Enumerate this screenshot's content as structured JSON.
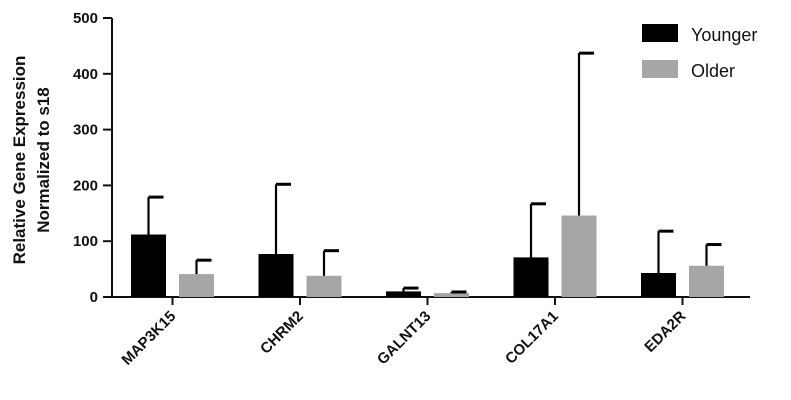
{
  "chart_data": {
    "type": "bar",
    "ylabel": "Relative Gene Expression Normalized to s18",
    "ylabel_lines": [
      "Relative Gene Expression",
      "Normalized to s18"
    ],
    "xlabel": "",
    "ylim": [
      0,
      500
    ],
    "yticks": [
      "0",
      "100",
      "200",
      "300",
      "400",
      "500"
    ],
    "categories": [
      "MAP3K15",
      "CHRM2",
      "GALNT13",
      "COL17A1",
      "EDA2R"
    ],
    "series": [
      {
        "name": "Younger",
        "color": "#000000",
        "values": [
          112,
          77,
          10,
          71,
          43
        ],
        "error_upper": [
          179,
          202,
          16,
          167,
          118
        ]
      },
      {
        "name": "Older",
        "color": "#a6a6a6",
        "values": [
          41,
          38,
          7,
          146,
          56
        ],
        "error_upper": [
          66,
          83,
          9,
          437,
          94
        ]
      }
    ],
    "grid": false,
    "legend_position": "top-right",
    "error_bars": "upper"
  }
}
